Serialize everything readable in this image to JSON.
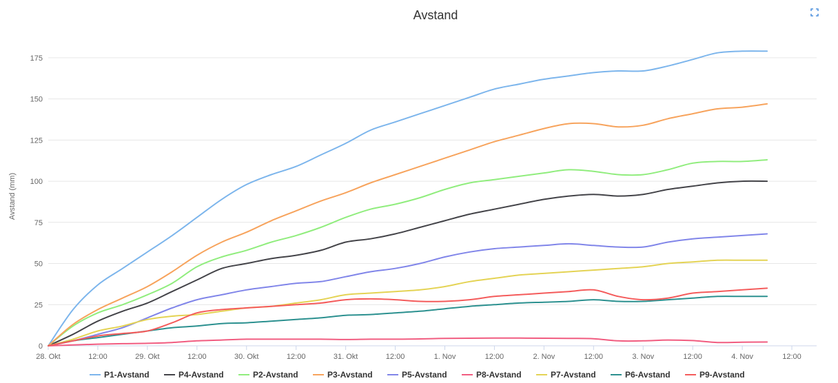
{
  "chart_data": {
    "type": "line",
    "title": "Avstand",
    "ylabel": "Avstand (mm)",
    "xlabel": "",
    "ylim": [
      0,
      185
    ],
    "yticks": [
      0,
      25,
      50,
      75,
      100,
      125,
      150,
      175
    ],
    "xlim": [
      0,
      7.75
    ],
    "xticks": [
      {
        "value": 0,
        "label": "28. Okt"
      },
      {
        "value": 0.5,
        "label": "12:00"
      },
      {
        "value": 1,
        "label": "29. Okt"
      },
      {
        "value": 1.5,
        "label": "12:00"
      },
      {
        "value": 2,
        "label": "30. Okt"
      },
      {
        "value": 2.5,
        "label": "12:00"
      },
      {
        "value": 3,
        "label": "31. Okt"
      },
      {
        "value": 3.5,
        "label": "12:00"
      },
      {
        "value": 4,
        "label": "1. Nov"
      },
      {
        "value": 4.5,
        "label": "12:00"
      },
      {
        "value": 5,
        "label": "2. Nov"
      },
      {
        "value": 5.5,
        "label": "12:00"
      },
      {
        "value": 6,
        "label": "3. Nov"
      },
      {
        "value": 6.5,
        "label": "12:00"
      },
      {
        "value": 7,
        "label": "4. Nov"
      },
      {
        "value": 7.5,
        "label": "12:00"
      }
    ],
    "x": [
      0,
      0.25,
      0.5,
      0.75,
      1,
      1.25,
      1.5,
      1.75,
      2,
      2.25,
      2.5,
      2.75,
      3,
      3.25,
      3.5,
      3.75,
      4,
      4.25,
      4.5,
      4.75,
      5,
      5.25,
      5.5,
      5.75,
      6,
      6.25,
      6.5,
      6.75,
      7,
      7.25
    ],
    "series": [
      {
        "name": "P1-Avstand",
        "color": "#7cb5ec",
        "values": [
          0,
          22,
          37,
          47,
          57,
          67,
          78,
          89,
          98,
          104,
          109,
          116,
          123,
          131,
          136,
          141,
          146,
          151,
          156,
          159,
          162,
          164,
          166,
          167,
          167,
          170,
          174,
          178,
          179,
          179
        ]
      },
      {
        "name": "P4-Avstand",
        "color": "#434348",
        "values": [
          0,
          7,
          15,
          21,
          26,
          33,
          40,
          47,
          50,
          53,
          55,
          58,
          63,
          65,
          68,
          72,
          76,
          80,
          83,
          86,
          89,
          91,
          92,
          91,
          92,
          95,
          97,
          99,
          100,
          100
        ]
      },
      {
        "name": "P2-Avstand",
        "color": "#90ed7d",
        "values": [
          0,
          12,
          20,
          25,
          31,
          38,
          48,
          54,
          58,
          63,
          67,
          72,
          78,
          83,
          86,
          90,
          95,
          99,
          101,
          103,
          105,
          107,
          106,
          104,
          104,
          107,
          111,
          112,
          112,
          113
        ]
      },
      {
        "name": "P3-Avstand",
        "color": "#f7a35c",
        "values": [
          0,
          13,
          22,
          29,
          36,
          45,
          55,
          63,
          69,
          76,
          82,
          88,
          93,
          99,
          104,
          109,
          114,
          119,
          124,
          128,
          132,
          135,
          135,
          133,
          134,
          138,
          141,
          144,
          145,
          147
        ]
      },
      {
        "name": "P5-Avstand",
        "color": "#8085e9",
        "values": [
          0,
          3,
          7,
          11,
          17,
          23,
          28,
          31,
          34,
          36,
          38,
          39,
          42,
          45,
          47,
          50,
          54,
          57,
          59,
          60,
          61,
          62,
          61,
          60,
          60,
          63,
          65,
          66,
          67,
          68
        ]
      },
      {
        "name": "P8-Avstand",
        "color": "#f15c80",
        "values": [
          0,
          0.5,
          1,
          1.3,
          1.5,
          2,
          3,
          3.5,
          4,
          4,
          4,
          4,
          3.8,
          4,
          4,
          4.2,
          4.5,
          4.6,
          4.7,
          4.7,
          4.6,
          4.5,
          4.3,
          3,
          3,
          3.5,
          3.2,
          2,
          2.2,
          2.3
        ]
      },
      {
        "name": "P7-Avstand",
        "color": "#e4d354",
        "values": [
          0,
          4,
          9,
          12,
          16,
          18,
          19,
          21,
          23,
          24,
          26,
          28,
          31,
          32,
          33,
          34,
          36,
          39,
          41,
          43,
          44,
          45,
          46,
          47,
          48,
          50,
          51,
          52,
          52,
          52
        ]
      },
      {
        "name": "P6-Avstand",
        "color": "#2b908f",
        "values": [
          0,
          3,
          5,
          7,
          9,
          11,
          12,
          13.5,
          14,
          15,
          16,
          17,
          18.5,
          19,
          20,
          21,
          22.5,
          24,
          25,
          26,
          26.5,
          27,
          28,
          27,
          27,
          28,
          29,
          30,
          30,
          30
        ]
      },
      {
        "name": "P9-Avstand",
        "color": "#f45b5b",
        "values": [
          0,
          3,
          6,
          7.5,
          9,
          14,
          20,
          22,
          23,
          24,
          25,
          26,
          28,
          28.5,
          28,
          27,
          27,
          28,
          30,
          31,
          32,
          33,
          34,
          30,
          28,
          29,
          32,
          33,
          34,
          35
        ]
      }
    ],
    "legend_position": "bottom",
    "grid": true
  },
  "ui": {
    "fullscreen_icon": "expand-icon"
  }
}
